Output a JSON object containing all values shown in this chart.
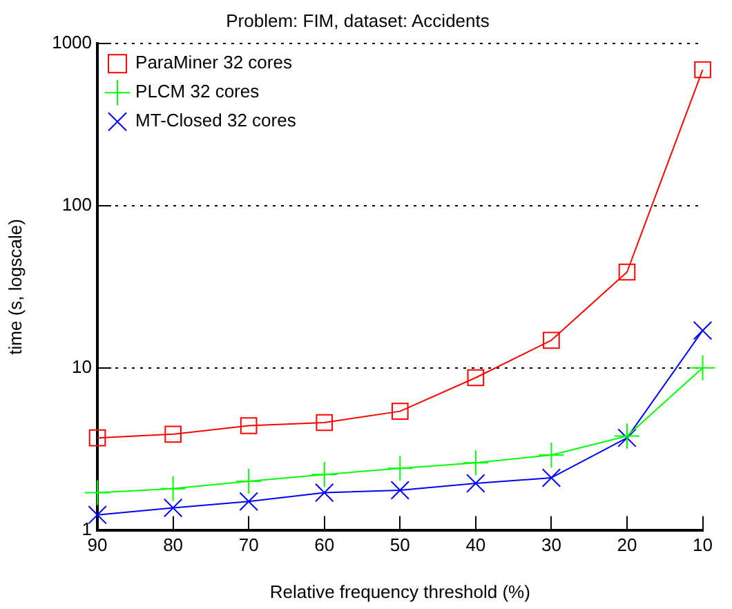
{
  "chart_data": {
    "type": "line",
    "title": "Problem: FIM, dataset: Accidents",
    "xlabel": "Relative frequency threshold (%)",
    "ylabel": "time (s, logscale)",
    "categories": [
      "90",
      "80",
      "70",
      "60",
      "50",
      "40",
      "30",
      "20",
      "10"
    ],
    "series": [
      {
        "name": "ParaMiner 32 cores",
        "color": "#ff0000",
        "marker": "square",
        "values": [
          3.7,
          3.9,
          4.4,
          4.6,
          5.4,
          8.7,
          14.8,
          39,
          690
        ]
      },
      {
        "name": "PLCM 32 cores",
        "color": "#00ff00",
        "marker": "plus",
        "values": [
          1.7,
          1.8,
          2.0,
          2.2,
          2.4,
          2.6,
          2.9,
          3.8,
          10
        ]
      },
      {
        "name": "MT-Closed 32 cores",
        "color": "#0000ff",
        "marker": "cross",
        "values": [
          1.24,
          1.37,
          1.5,
          1.7,
          1.76,
          1.94,
          2.1,
          3.7,
          17
        ]
      }
    ],
    "log": "y",
    "ylim": [
      1,
      1000
    ],
    "yticks": [
      1,
      10,
      100,
      1000
    ],
    "grid": "y",
    "line_style": "solid",
    "legend": "top left"
  }
}
